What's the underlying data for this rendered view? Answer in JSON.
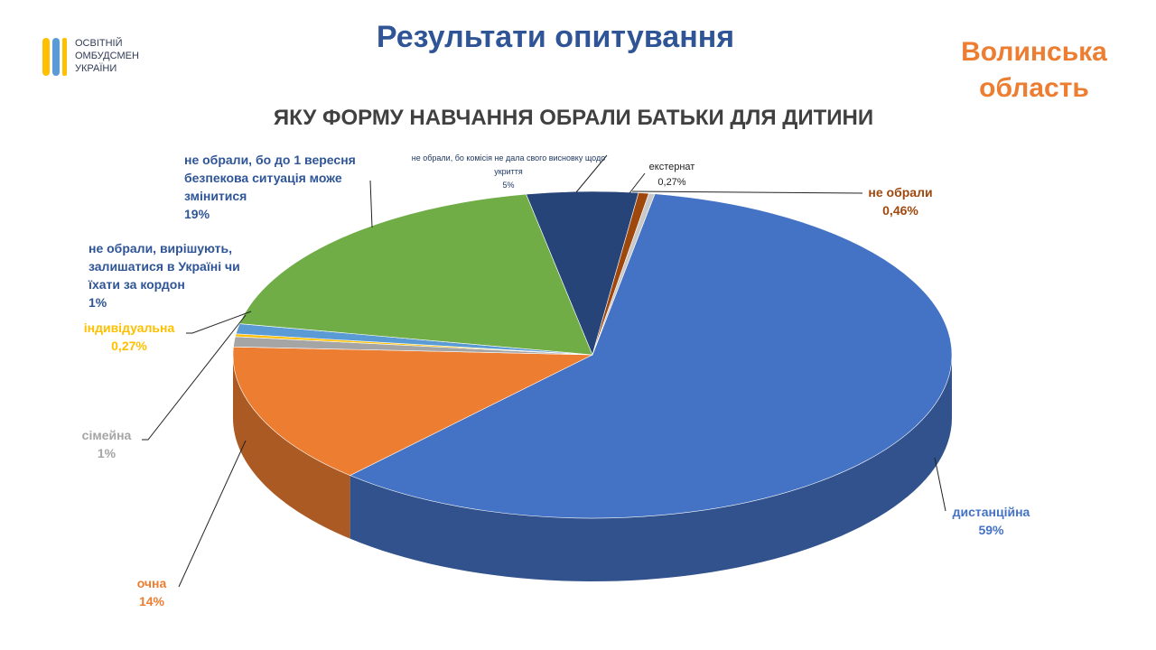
{
  "header": {
    "logo_lines": [
      "ОСВІТНІЙ",
      "ОМБУДСМЕН",
      "УКРАЇНИ"
    ],
    "title": "Результати опитування",
    "region": "Волинська область"
  },
  "chart_data": {
    "type": "pie",
    "title": "ЯКУ ФОРМУ НАВЧАННЯ ОБРАЛИ БАТЬКИ ДЛЯ ДИТИНИ",
    "categories": [
      "дистанційна",
      "очна",
      "сімейна",
      "індивідуальна",
      "не обрали, вирішують, залишатися в Україні чи їхати за кордон",
      "не обрали, бо до 1 вересня безпекова ситуація може змінитися",
      "не обрали, бо комісія не дала свого висновку щодо укриття",
      "не обрали",
      "екстернат"
    ],
    "values": [
      59,
      14,
      1,
      0.27,
      1,
      19,
      5,
      0.46,
      0.27
    ],
    "value_labels": [
      "59%",
      "14%",
      "1%",
      "0,27%",
      "1%",
      "19%",
      "5%",
      "0,46%",
      "0,27%"
    ],
    "colors": [
      "#4472c4",
      "#ed7d31",
      "#a5a5a5",
      "#ffc000",
      "#5b9bd5",
      "#70ad47",
      "#264478",
      "#9e480e",
      "#c9c9c9"
    ]
  }
}
